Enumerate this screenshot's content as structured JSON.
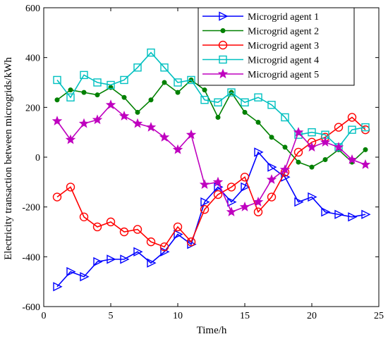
{
  "chart_data": {
    "type": "line",
    "xlabel": "Time/h",
    "ylabel": "Electricity transaction between microgrids/kWh",
    "xlim": [
      0,
      25
    ],
    "ylim": [
      -600,
      600
    ],
    "xticks": [
      0,
      5,
      10,
      15,
      20,
      25
    ],
    "yticks": [
      -600,
      -400,
      -200,
      0,
      200,
      400,
      600
    ],
    "grid": false,
    "legend_position": "top-right",
    "x": [
      1,
      2,
      3,
      4,
      5,
      6,
      7,
      8,
      9,
      10,
      11,
      12,
      13,
      14,
      15,
      16,
      17,
      18,
      19,
      20,
      21,
      22,
      23,
      24
    ],
    "series": [
      {
        "name": "Microgrid agent 1",
        "color": "#0000ff",
        "marker": "triangle-right",
        "values": [
          -520,
          -460,
          -480,
          -420,
          -410,
          -410,
          -380,
          -425,
          -380,
          -310,
          -350,
          -180,
          -120,
          -180,
          -120,
          20,
          -40,
          -80,
          -180,
          -160,
          -220,
          -230,
          -240,
          -230
        ]
      },
      {
        "name": "Microgrid agent 2",
        "color": "#008000",
        "marker": "dot",
        "values": [
          230,
          270,
          260,
          250,
          280,
          240,
          180,
          230,
          300,
          260,
          310,
          270,
          160,
          260,
          180,
          140,
          80,
          40,
          -20,
          -40,
          -10,
          30,
          -20,
          30
        ]
      },
      {
        "name": "Microgrid agent 3",
        "color": "#ff0000",
        "marker": "circle",
        "values": [
          -160,
          -120,
          -240,
          -280,
          -260,
          -300,
          -290,
          -340,
          -360,
          -280,
          -340,
          -210,
          -150,
          -120,
          -80,
          -220,
          -160,
          -60,
          20,
          60,
          80,
          120,
          160,
          110
        ]
      },
      {
        "name": "Microgrid agent 4",
        "color": "#00c0c0",
        "marker": "square",
        "values": [
          310,
          240,
          330,
          300,
          290,
          310,
          360,
          420,
          360,
          300,
          310,
          230,
          220,
          260,
          220,
          240,
          210,
          160,
          90,
          100,
          90,
          40,
          110,
          120
        ]
      },
      {
        "name": "Microgrid agent 5",
        "color": "#bf00bf",
        "marker": "star",
        "values": [
          145,
          70,
          135,
          150,
          210,
          165,
          135,
          120,
          80,
          30,
          90,
          -110,
          -100,
          -220,
          -200,
          -180,
          -90,
          -50,
          100,
          40,
          60,
          40,
          -10,
          -30
        ]
      }
    ]
  }
}
